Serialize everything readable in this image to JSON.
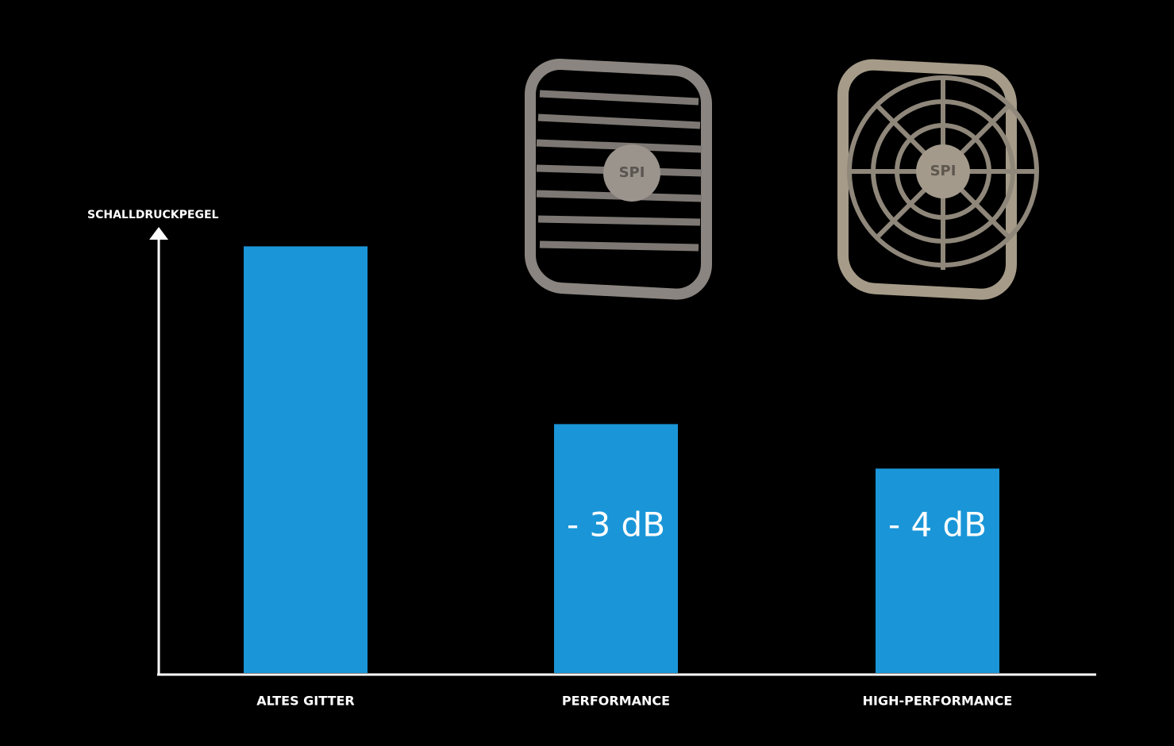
{
  "chart_data": {
    "type": "bar",
    "y_label": "SCHALLDRUCKPEGEL",
    "categories": [
      "ALTES GITTER",
      "PERFORMANCE",
      "HIGH-PERFORMANCE"
    ],
    "values": [
      96,
      56,
      46
    ],
    "color": "#1a96d8",
    "ylim": [
      0,
      100
    ],
    "annotations": [
      "- 3 dB",
      "- 4 dB"
    ],
    "grille_logo": "SPI"
  }
}
